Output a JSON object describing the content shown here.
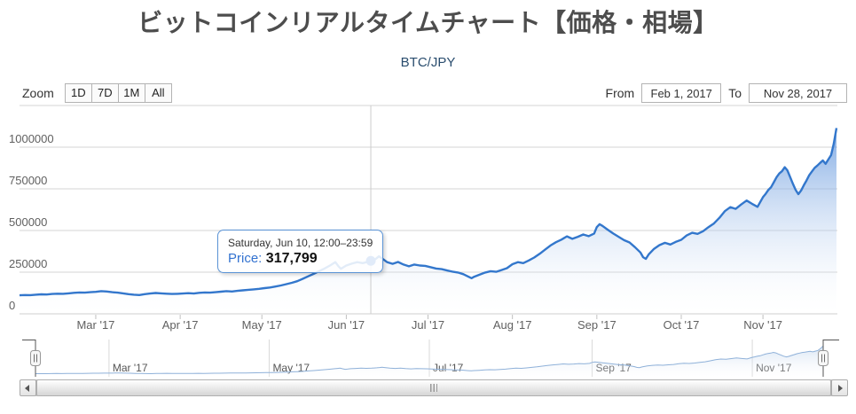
{
  "title": "ビットコインリアルタイムチャート【価格・相場】",
  "chart": {
    "subtitle": "BTC/JPY"
  },
  "controls": {
    "zoom_label": "Zoom",
    "zoom_buttons": [
      "1D",
      "7D",
      "1M",
      "All"
    ],
    "from_label": "From",
    "from_value": "Feb 1, 2017",
    "to_label": "To",
    "to_value": "Nov 28, 2017"
  },
  "tooltip": {
    "date": "Saturday, Jun 10, 12:00–23:59",
    "price_label": "Price:",
    "price_value": "317,799"
  },
  "chart_data": {
    "type": "area",
    "title": "ビットコインリアルタイムチャート【価格・相場】",
    "subtitle": "BTC/JPY",
    "xlabel": "",
    "ylabel": "",
    "x_range": {
      "from": "Feb 1, 2017",
      "to": "Nov 28, 2017",
      "total_days": 300
    },
    "ylim": [
      0,
      1250000
    ],
    "yticks": [
      0,
      250000,
      500000,
      750000,
      1000000
    ],
    "grid": true,
    "xticks": [
      {
        "day": 28,
        "label": "Mar '17"
      },
      {
        "day": 59,
        "label": "Apr '17"
      },
      {
        "day": 89,
        "label": "May '17"
      },
      {
        "day": 120,
        "label": "Jun '17"
      },
      {
        "day": 150,
        "label": "Jul '17"
      },
      {
        "day": 181,
        "label": "Aug '17"
      },
      {
        "day": 212,
        "label": "Sep '17"
      },
      {
        "day": 243,
        "label": "Oct '17"
      },
      {
        "day": 273,
        "label": "Nov '17"
      }
    ],
    "navigator_ticks": [
      {
        "day": 28,
        "label": "Mar '17"
      },
      {
        "day": 89,
        "label": "May '17"
      },
      {
        "day": 150,
        "label": "Jul '17"
      },
      {
        "day": 212,
        "label": "Sep '17"
      },
      {
        "day": 273,
        "label": "Nov '17"
      }
    ],
    "marker": {
      "day": 129,
      "value": 317799,
      "date": "Saturday, Jun 10, 12:00–23:59"
    },
    "colors": {
      "line": "#3377cc",
      "marker": "#2f6fd0",
      "area_top": "#4381d6",
      "nav_line": "#8fb1d9",
      "nav_area_top": "#a9c4e6",
      "gridline": "#d4d4d4",
      "crosshair": "#cccccc",
      "axis_label": "#606060",
      "tooltip_border": "#5b94d6"
    },
    "series": [
      {
        "name": "Price",
        "points_day_value": [
          [
            0,
            111000
          ],
          [
            2,
            113000
          ],
          [
            4,
            112000
          ],
          [
            6,
            115000
          ],
          [
            8,
            117000
          ],
          [
            10,
            116000
          ],
          [
            12,
            119000
          ],
          [
            14,
            121000
          ],
          [
            16,
            120000
          ],
          [
            18,
            123000
          ],
          [
            20,
            126000
          ],
          [
            22,
            128000
          ],
          [
            24,
            127000
          ],
          [
            26,
            130000
          ],
          [
            28,
            132000
          ],
          [
            30,
            136000
          ],
          [
            32,
            134000
          ],
          [
            34,
            130000
          ],
          [
            36,
            127000
          ],
          [
            38,
            123000
          ],
          [
            40,
            118000
          ],
          [
            42,
            115000
          ],
          [
            44,
            113000
          ],
          [
            46,
            118000
          ],
          [
            48,
            122000
          ],
          [
            50,
            125000
          ],
          [
            52,
            123000
          ],
          [
            54,
            121000
          ],
          [
            56,
            119000
          ],
          [
            58,
            120000
          ],
          [
            60,
            122000
          ],
          [
            62,
            124000
          ],
          [
            64,
            122000
          ],
          [
            66,
            126000
          ],
          [
            68,
            128000
          ],
          [
            70,
            127000
          ],
          [
            72,
            130000
          ],
          [
            74,
            133000
          ],
          [
            76,
            136000
          ],
          [
            78,
            134000
          ],
          [
            80,
            138000
          ],
          [
            82,
            141000
          ],
          [
            84,
            144000
          ],
          [
            86,
            147000
          ],
          [
            88,
            150000
          ],
          [
            90,
            154000
          ],
          [
            92,
            158000
          ],
          [
            94,
            164000
          ],
          [
            96,
            170000
          ],
          [
            98,
            178000
          ],
          [
            100,
            186000
          ],
          [
            102,
            196000
          ],
          [
            104,
            210000
          ],
          [
            106,
            225000
          ],
          [
            108,
            240000
          ],
          [
            110,
            256000
          ],
          [
            112,
            272000
          ],
          [
            114,
            290000
          ],
          [
            115,
            300000
          ],
          [
            116,
            310000
          ],
          [
            117,
            288000
          ],
          [
            118,
            270000
          ],
          [
            119,
            280000
          ],
          [
            120,
            290000
          ],
          [
            122,
            301000
          ],
          [
            124,
            310000
          ],
          [
            126,
            304000
          ],
          [
            128,
            312000
          ],
          [
            129,
            317799
          ],
          [
            130,
            322000
          ],
          [
            131,
            332000
          ],
          [
            132,
            345000
          ],
          [
            133,
            334000
          ],
          [
            135,
            310000
          ],
          [
            137,
            300000
          ],
          [
            139,
            311000
          ],
          [
            141,
            296000
          ],
          [
            143,
            285000
          ],
          [
            145,
            296000
          ],
          [
            147,
            290000
          ],
          [
            149,
            288000
          ],
          [
            151,
            280000
          ],
          [
            153,
            272000
          ],
          [
            155,
            268000
          ],
          [
            157,
            260000
          ],
          [
            159,
            253000
          ],
          [
            161,
            248000
          ],
          [
            163,
            238000
          ],
          [
            165,
            222000
          ],
          [
            166,
            214000
          ],
          [
            167,
            223000
          ],
          [
            169,
            235000
          ],
          [
            171,
            248000
          ],
          [
            173,
            256000
          ],
          [
            175,
            252000
          ],
          [
            177,
            263000
          ],
          [
            179,
            274000
          ],
          [
            181,
            298000
          ],
          [
            183,
            310000
          ],
          [
            185,
            304000
          ],
          [
            187,
            320000
          ],
          [
            189,
            338000
          ],
          [
            191,
            360000
          ],
          [
            193,
            385000
          ],
          [
            195,
            410000
          ],
          [
            197,
            430000
          ],
          [
            199,
            445000
          ],
          [
            201,
            465000
          ],
          [
            203,
            450000
          ],
          [
            205,
            462000
          ],
          [
            207,
            476000
          ],
          [
            209,
            466000
          ],
          [
            211,
            482000
          ],
          [
            212,
            520000
          ],
          [
            213,
            538000
          ],
          [
            214,
            528000
          ],
          [
            216,
            505000
          ],
          [
            218,
            482000
          ],
          [
            220,
            462000
          ],
          [
            222,
            442000
          ],
          [
            224,
            428000
          ],
          [
            226,
            400000
          ],
          [
            228,
            368000
          ],
          [
            229,
            340000
          ],
          [
            230,
            330000
          ],
          [
            231,
            356000
          ],
          [
            233,
            390000
          ],
          [
            235,
            412000
          ],
          [
            237,
            426000
          ],
          [
            239,
            416000
          ],
          [
            241,
            432000
          ],
          [
            243,
            444000
          ],
          [
            245,
            470000
          ],
          [
            247,
            486000
          ],
          [
            249,
            480000
          ],
          [
            251,
            496000
          ],
          [
            253,
            520000
          ],
          [
            255,
            542000
          ],
          [
            257,
            576000
          ],
          [
            259,
            616000
          ],
          [
            261,
            640000
          ],
          [
            263,
            630000
          ],
          [
            265,
            656000
          ],
          [
            267,
            680000
          ],
          [
            269,
            660000
          ],
          [
            271,
            642000
          ],
          [
            273,
            700000
          ],
          [
            274,
            720000
          ],
          [
            275,
            744000
          ],
          [
            276,
            760000
          ],
          [
            277,
            790000
          ],
          [
            278,
            820000
          ],
          [
            279,
            842000
          ],
          [
            280,
            856000
          ],
          [
            281,
            880000
          ],
          [
            282,
            860000
          ],
          [
            283,
            820000
          ],
          [
            284,
            780000
          ],
          [
            285,
            744000
          ],
          [
            286,
            718000
          ],
          [
            287,
            740000
          ],
          [
            288,
            772000
          ],
          [
            289,
            800000
          ],
          [
            290,
            832000
          ],
          [
            291,
            855000
          ],
          [
            292,
            876000
          ],
          [
            293,
            890000
          ],
          [
            294,
            906000
          ],
          [
            295,
            920000
          ],
          [
            296,
            900000
          ],
          [
            297,
            926000
          ],
          [
            298,
            952000
          ],
          [
            299,
            1020000
          ],
          [
            300,
            1115000
          ]
        ]
      }
    ],
    "legend": {
      "visible": false
    }
  }
}
